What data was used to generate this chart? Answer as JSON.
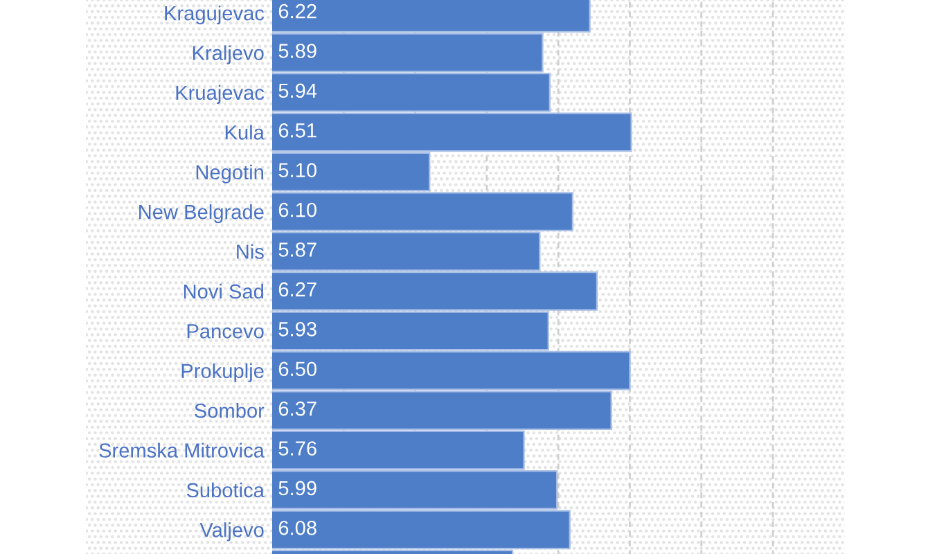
{
  "chart_data": {
    "type": "bar",
    "orientation": "horizontal",
    "categories": [
      "Kragujevac",
      "Kraljevo",
      "Kruajevac",
      "Kula",
      "Negotin",
      "New Belgrade",
      "Nis",
      "Novi Sad",
      "Pancevo",
      "Prokuplje",
      "Sombor",
      "Sremska Mitrovica",
      "Subotica",
      "Valjevo",
      null
    ],
    "values": [
      6.22,
      5.89,
      5.94,
      6.51,
      5.1,
      6.1,
      5.87,
      6.27,
      5.93,
      6.5,
      6.37,
      5.76,
      5.99,
      6.08,
      5.68
    ],
    "value_labels": [
      "6.22",
      "5.89",
      "5.94",
      "6.51",
      "5.10",
      "6.10",
      "5.87",
      "6.27",
      "5.93",
      "6.50",
      "6.37",
      "5.76",
      "5.99",
      "6.08",
      null
    ],
    "color": "#4e7ec8",
    "xlim": [
      4,
      8
    ],
    "xticks": [
      {
        "value": 4,
        "label": null
      },
      {
        "value": 4.5,
        "label": null
      },
      {
        "value": 5,
        "label": null
      },
      {
        "value": 5.5,
        "label": null
      },
      {
        "value": 6,
        "label": null
      },
      {
        "value": 6.5,
        "label": null
      },
      {
        "value": 7,
        "label": null
      },
      {
        "value": 7.5,
        "label": null
      }
    ],
    "grid": "x",
    "tick_labels": "y"
  }
}
